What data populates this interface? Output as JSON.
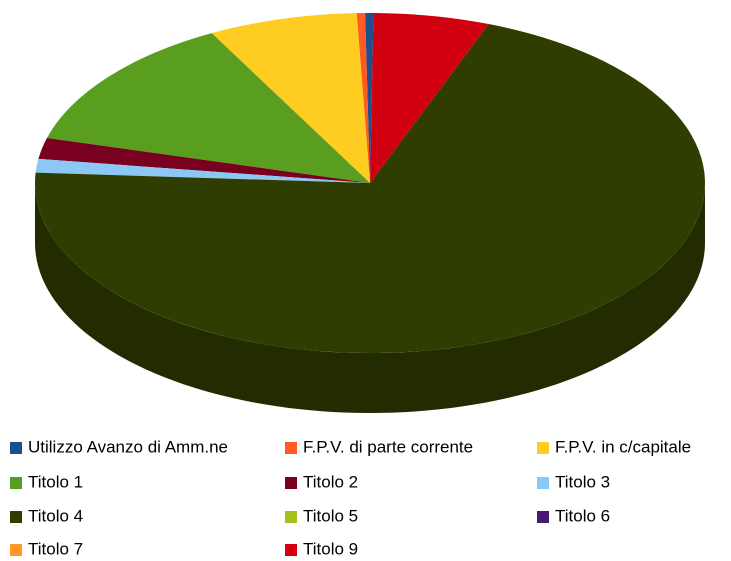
{
  "chart_data": {
    "type": "pie",
    "categories": [
      "Utilizzo Avanzo di Amm.ne",
      "F.P.V. di parte corrente",
      "F.P.V. in c/capitale",
      "Titolo 1",
      "Titolo 2",
      "Titolo 3",
      "Titolo 4",
      "Titolo 5",
      "Titolo 6",
      "Titolo 7",
      "Titolo 9"
    ],
    "values": [
      0.4,
      0.4,
      7.2,
      12.9,
      2.0,
      1.3,
      70.2,
      0,
      0,
      0,
      5.6
    ],
    "colors": [
      "#1f4e8c",
      "#ff5a1f",
      "#ffcc22",
      "#5a9e1f",
      "#7a0020",
      "#8cc8f5",
      "#2f3d00",
      "#a5c21a",
      "#4b1a70",
      "#ff9a2a",
      "#d00010"
    ],
    "legend": "bottom"
  }
}
